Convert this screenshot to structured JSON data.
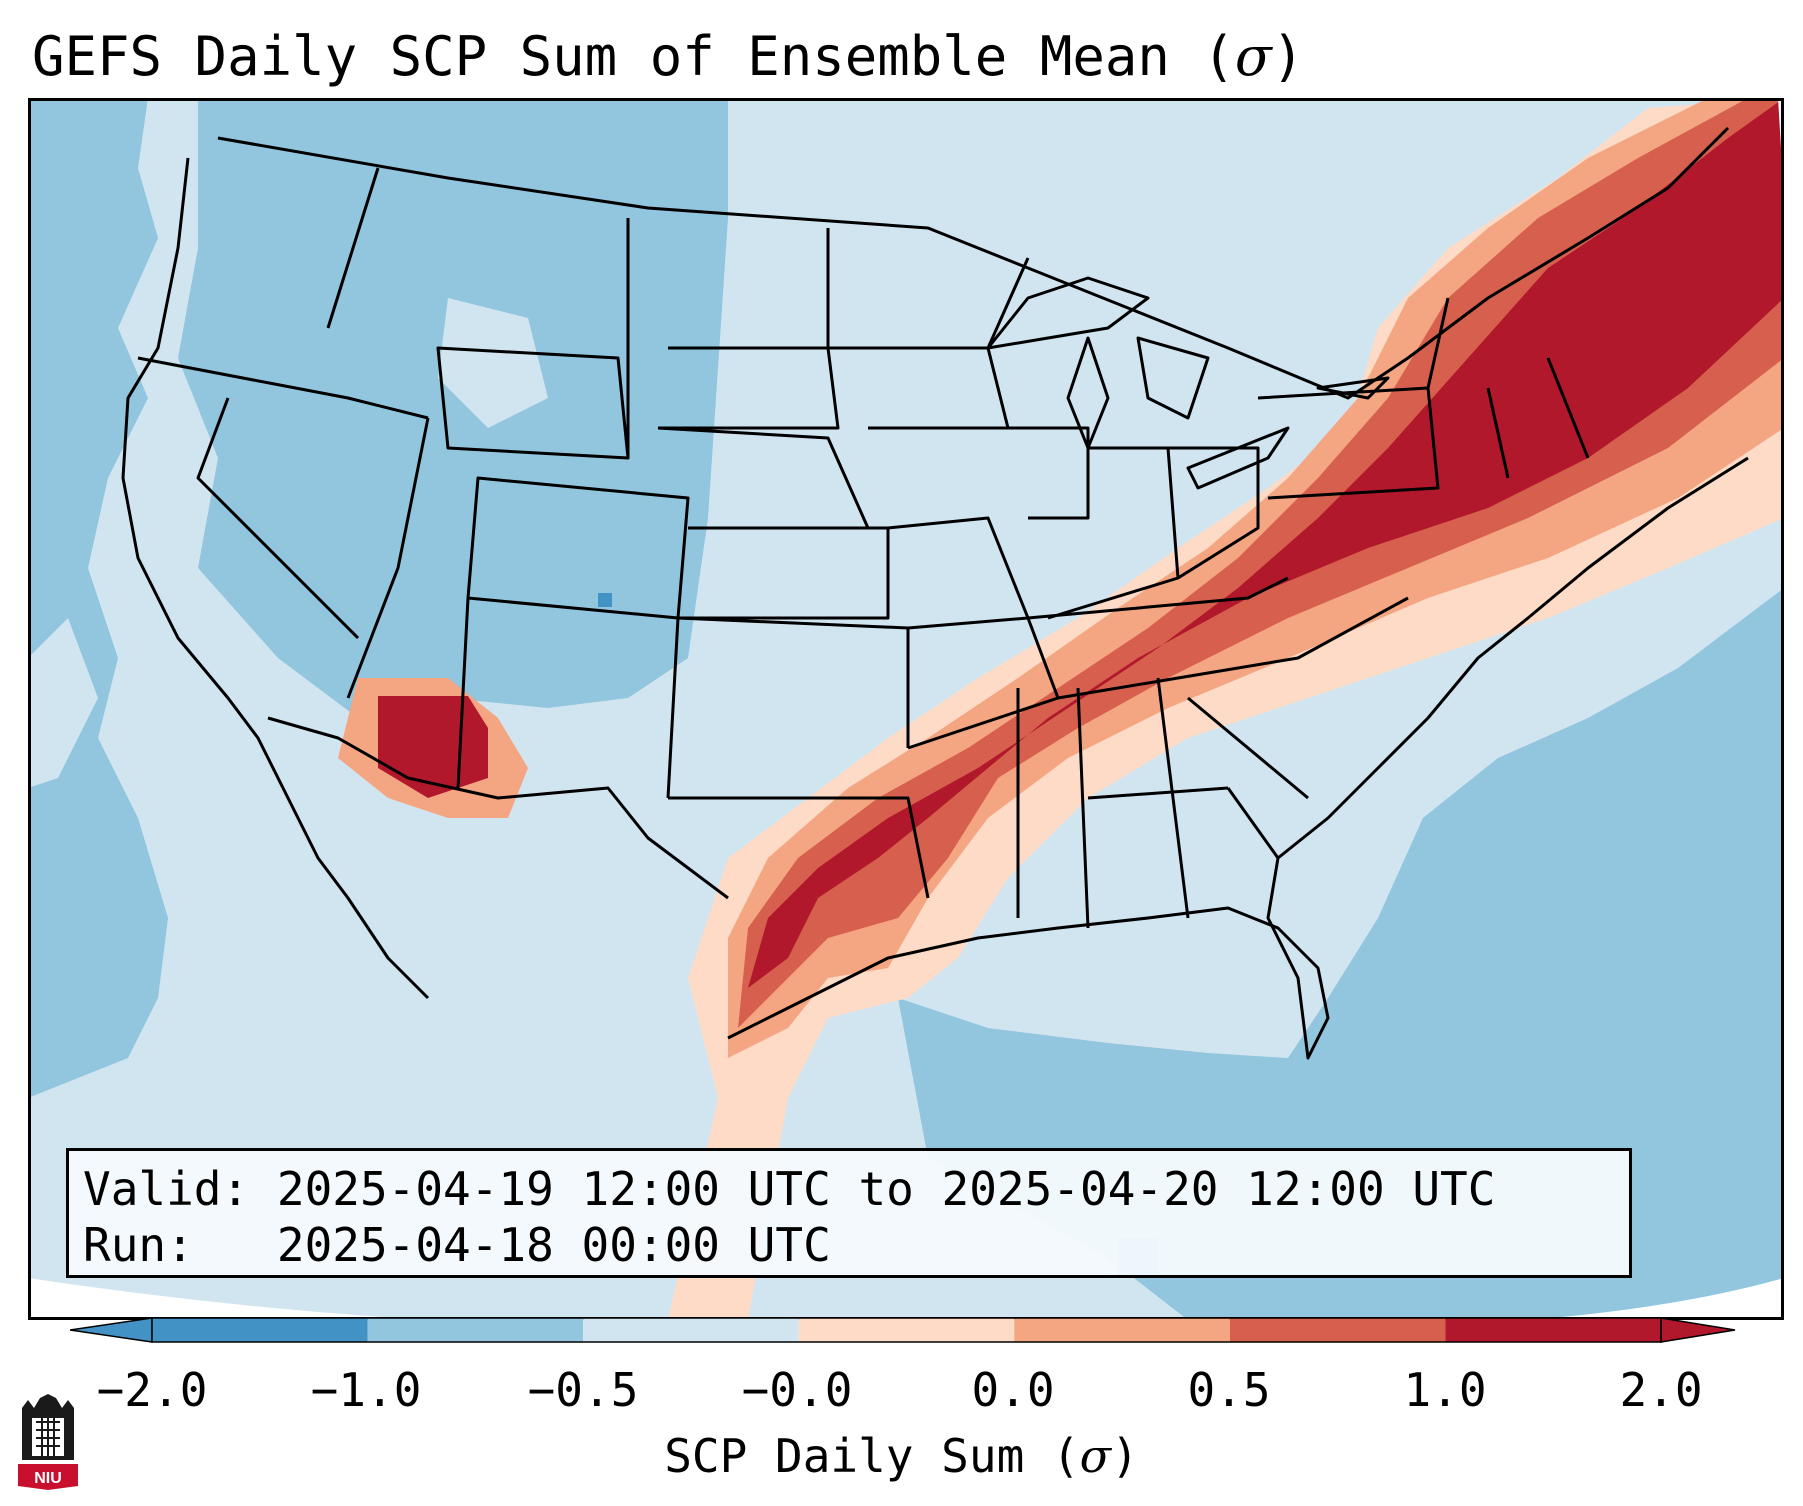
{
  "title": {
    "text": "GEFS Daily SCP Sum of Ensemble Mean (",
    "symbol": "σ",
    "close": ")"
  },
  "info": {
    "valid_label": "Valid:",
    "valid_value": "2025-04-19 12:00 UTC to 2025-04-20 12:00 UTC",
    "run_label": "Run:",
    "run_value": "2025-04-18 00:00 UTC"
  },
  "colorbar": {
    "label_text": "SCP Daily Sum (",
    "label_symbol": "σ",
    "label_close": ")",
    "tick_labels": [
      "−2.0",
      "−1.0",
      "−0.5",
      "−0.0",
      "0.0",
      "0.5",
      "1.0",
      "2.0"
    ],
    "colors": [
      "#4292c6",
      "#92c5de",
      "#d1e5f0",
      "#f7f7f7",
      "#fddbc7",
      "#f4a582",
      "#d6604d",
      "#b2182b"
    ],
    "extend": "both"
  },
  "legend_colors": {
    "strong_negative": "#4292c6",
    "negative": "#92c5de",
    "weak_negative": "#d1e5f0",
    "weak_positive": "#fddbc7",
    "positive": "#f4a582",
    "strong_positive": "#d6604d",
    "very_strong_positive": "#b2182b",
    "ocean": "#92c5de",
    "outline": "#000000"
  },
  "map_features": {
    "projection": "lambert-conformal",
    "region": "CONUS",
    "borders": [
      "coastlines",
      "state-lines",
      "country-borders"
    ],
    "high_value_corridor": "Texas through Arkansas, Tennessee, Kentucky, Ohio, Pennsylvania to New England",
    "secondary_maximum": "southern Arizona"
  },
  "logo": {
    "text": "NIU",
    "icon": "niu-logo-icon"
  }
}
